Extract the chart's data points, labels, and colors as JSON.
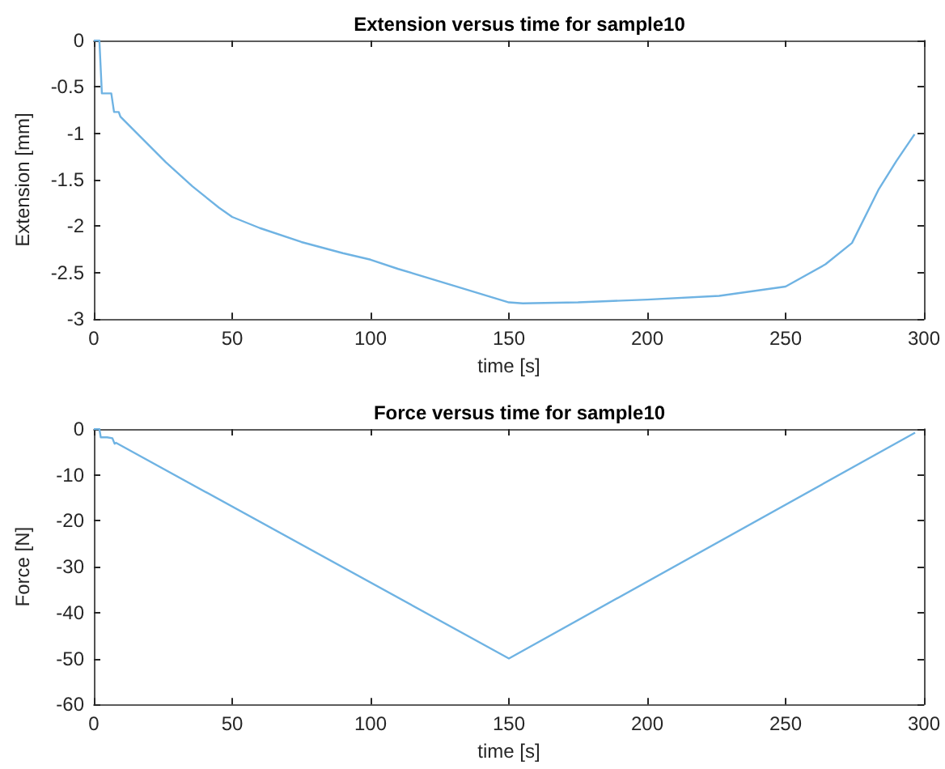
{
  "chart_data": [
    {
      "type": "line",
      "title": "Extension versus time for sample10",
      "xlabel": "time [s]",
      "ylabel": "Extension [mm]",
      "series": [
        {
          "color": "#6fb3e3",
          "x": [
            0,
            2,
            2.9,
            6.3,
            7.3,
            9,
            9.6,
            16.3,
            26,
            35.6,
            45.2,
            50,
            60,
            75,
            90,
            100,
            110,
            130,
            150,
            155,
            175,
            200,
            226,
            250,
            264.4,
            274,
            283.7,
            290,
            296.6
          ],
          "values": [
            0,
            0,
            -0.57,
            -0.57,
            -0.77,
            -0.77,
            -0.82,
            -1.02,
            -1.31,
            -1.57,
            -1.8,
            -1.9,
            -2.02,
            -2.17,
            -2.29,
            -2.36,
            -2.46,
            -2.64,
            -2.82,
            -2.83,
            -2.82,
            -2.79,
            -2.75,
            -2.65,
            -2.41,
            -2.18,
            -1.6,
            -1.3,
            -1.01
          ]
        }
      ],
      "xlim": [
        0,
        300
      ],
      "xticks": [
        0,
        50,
        100,
        150,
        200,
        250,
        300
      ],
      "ylim": [
        -3,
        0
      ],
      "yticks": [
        -3,
        -2.5,
        -2,
        -1.5,
        -1,
        -0.5,
        0
      ],
      "grid": false,
      "marker": "none",
      "line_style": "solid"
    },
    {
      "type": "line",
      "title": "Force versus time for sample10",
      "xlabel": "time [s]",
      "ylabel": "Force [N]",
      "series": [
        {
          "color": "#6fb3e3",
          "x": [
            0,
            2,
            2.5,
            4.8,
            6.7,
            7.5,
            8,
            150,
            296.8
          ],
          "values": [
            0,
            0,
            -1.8,
            -1.8,
            -2,
            -3.2,
            -3,
            -50,
            -0.8
          ]
        }
      ],
      "xlim": [
        0,
        300
      ],
      "xticks": [
        0,
        50,
        100,
        150,
        200,
        250,
        300
      ],
      "ylim": [
        -60,
        0
      ],
      "yticks": [
        -60,
        -50,
        -40,
        -30,
        -20,
        -10,
        0
      ],
      "grid": false,
      "marker": "none",
      "line_style": "solid"
    }
  ]
}
